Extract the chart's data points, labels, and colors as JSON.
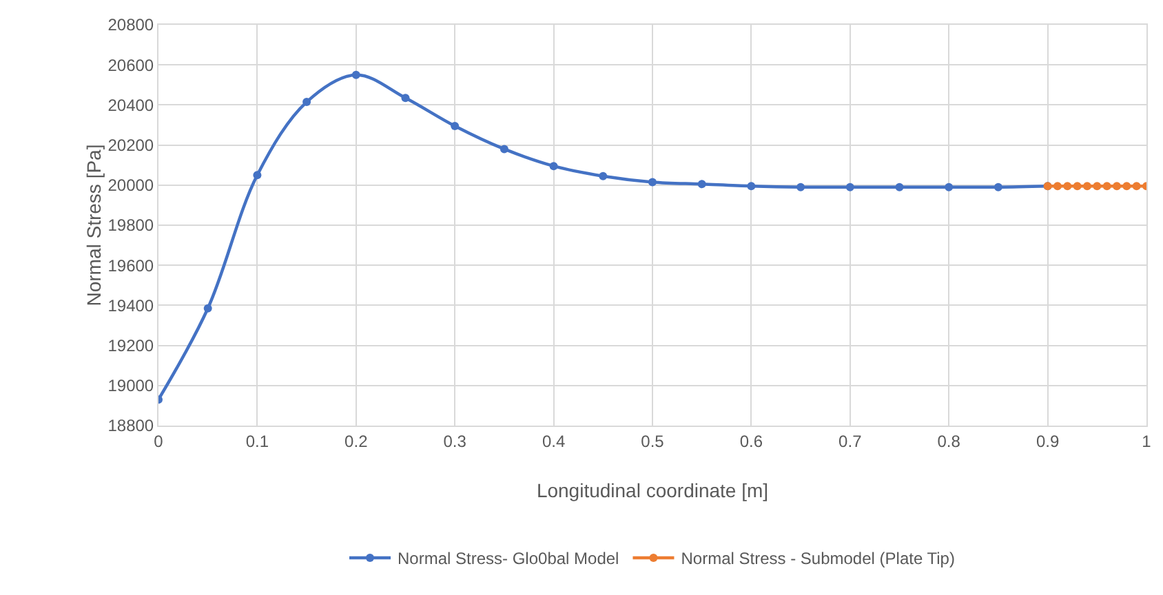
{
  "chart_data": {
    "type": "line",
    "xlabel": "Longitudinal coordinate [m]",
    "ylabel": "Normal Stress [Pa]",
    "x": [
      0,
      0.05,
      0.1,
      0.15,
      0.2,
      0.25,
      0.3,
      0.35,
      0.4,
      0.45,
      0.5,
      0.55,
      0.6,
      0.65,
      0.7,
      0.75,
      0.8,
      0.85,
      0.9
    ],
    "series": [
      {
        "name": "Normal Stress- Glo0bal Model",
        "color": "#4472c4",
        "values": [
          18930,
          19385,
          20050,
          20415,
          20550,
          20435,
          20295,
          20180,
          20095,
          20045,
          20015,
          20005,
          19995,
          19990,
          19990,
          19990,
          19990,
          19990,
          19995
        ]
      },
      {
        "name": "Normal Stress - Submodel (Plate Tip)",
        "color": "#ed7d31",
        "x": [
          0.9,
          0.91,
          0.92,
          0.93,
          0.94,
          0.95,
          0.96,
          0.97,
          0.98,
          0.99,
          1.0
        ],
        "values": [
          19995,
          19995,
          19995,
          19995,
          19995,
          19995,
          19995,
          19995,
          19995,
          19995,
          19995
        ]
      }
    ],
    "xlim": [
      0,
      1
    ],
    "xticks": [
      0,
      0.1,
      0.2,
      0.3,
      0.4,
      0.5,
      0.6,
      0.7,
      0.8,
      0.9,
      1
    ],
    "ylim": [
      18800,
      20800
    ],
    "yticks": [
      18800,
      19000,
      19200,
      19400,
      19600,
      19800,
      20000,
      20200,
      20400,
      20600,
      20800
    ],
    "grid": true,
    "legend": "bottom",
    "marker": "circle",
    "line_style": "solid"
  }
}
